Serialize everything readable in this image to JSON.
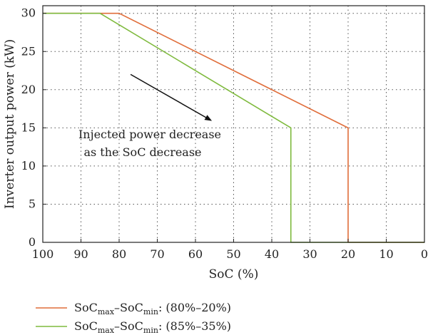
{
  "chart_data": {
    "type": "line",
    "xlabel": "SoC (%)",
    "ylabel": "Inverter output power (kW)",
    "xlim": [
      100,
      0
    ],
    "ylim": [
      0,
      31
    ],
    "x_reversed": true,
    "xticks": [
      100,
      90,
      80,
      70,
      60,
      50,
      40,
      30,
      20,
      10,
      0
    ],
    "yticks": [
      0,
      5,
      10,
      15,
      20,
      25,
      30
    ],
    "grid": true,
    "grid_style": "dotted",
    "legend_position": "bottom-left",
    "annotation": {
      "lines": [
        "Injected power decrease",
        "as the SoC decrease"
      ],
      "arrow": {
        "from": [
          77,
          22
        ],
        "to": [
          56,
          16
        ]
      }
    },
    "series": [
      {
        "name": "SoCmax–SoCmin: (80%–20%)",
        "legend": {
          "base1": "SoC",
          "sub1": "max",
          "dash": "–",
          "base2": "SoC",
          "sub2": "min",
          "suffix": ": (80%–20%)"
        },
        "color": "#e06d3a",
        "x": [
          100,
          80,
          20,
          20,
          0
        ],
        "y": [
          30,
          30,
          15,
          0,
          0
        ]
      },
      {
        "name": "SoCmax–SoCmin: (85%–35%)",
        "legend": {
          "base1": "SoC",
          "sub1": "max",
          "dash": "–",
          "base2": "SoC",
          "sub2": "min",
          "suffix": ": (85%–35%)"
        },
        "color": "#7fba3e",
        "x": [
          100,
          85,
          35,
          35,
          0
        ],
        "y": [
          30,
          30,
          15,
          0,
          0
        ]
      }
    ]
  }
}
